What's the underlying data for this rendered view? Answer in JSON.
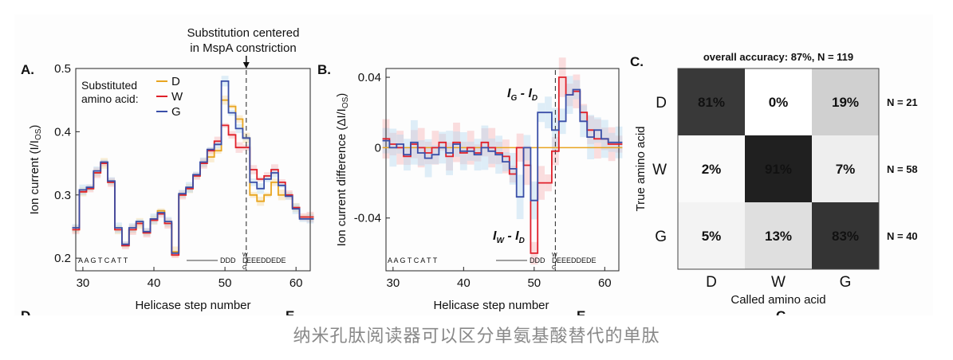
{
  "caption": "纳米孔肽阅读器可以区分单氨基酸替代的单肽",
  "annotation": {
    "line1": "Substitution centered",
    "line2": "in MspA constriction"
  },
  "colors": {
    "D": "#e8a520",
    "W": "#e0202a",
    "G": "#3a4fa8",
    "D_band": "#f6d9a0",
    "W_band": "#f7b6b8",
    "G_band": "#b9d9f0"
  },
  "panel_a": {
    "letter": "A.",
    "ylabel": "Ion current (I/I",
    "ylabel_sub": "OS",
    "ylabel_end": ")",
    "xlabel": "Helicase step number",
    "legend_title1": "Substituted",
    "legend_title2": "amino acid:",
    "legend": [
      "D",
      "W",
      "G"
    ],
    "sequence_left": "A A G T C A T T",
    "sequence_right_pre": "DDD",
    "sequence_right_post": "EEEDDEDE",
    "sub_W": "W",
    "sub_D": "D",
    "sub_G": "G"
  },
  "panel_b": {
    "letter": "B.",
    "ylabel": "Ion current difference (ΔI/I",
    "ylabel_sub": "OS",
    "ylabel_end": ")",
    "xlabel": "Helicase step number",
    "label_g": "I",
    "label_g_sub1": "G",
    "label_g_mid": " - I",
    "label_g_sub2": "D",
    "label_w": "I",
    "label_w_sub1": "W",
    "label_w_mid": " - I",
    "label_w_sub2": "D",
    "sequence_left": "A A G T C A T T",
    "sequence_right_pre": "DDD",
    "sequence_right_post": "EEEDDEDE",
    "sub_W": "W",
    "sub_D": "D",
    "sub_G": "G"
  },
  "panel_c": {
    "letter": "C.",
    "title": "overall accuracy: 87%, N = 119",
    "ylabel": "True amino acid",
    "xlabel": "Called amino acid"
  },
  "cut_letters": {
    "d": "D",
    "e": "E",
    "e2": "E",
    "c": "C"
  },
  "chart_data": [
    {
      "type": "line",
      "title": "",
      "xlabel": "Helicase step number",
      "ylabel": "Ion current (I/IOS)",
      "xlim": [
        29,
        62
      ],
      "ylim": [
        0.18,
        0.5
      ],
      "xticks": [
        30,
        40,
        50,
        60
      ],
      "yticks": [
        0.2,
        0.3,
        0.4,
        0.5
      ],
      "x": [
        29,
        30,
        31,
        32,
        33,
        34,
        35,
        36,
        37,
        38,
        39,
        40,
        41,
        42,
        43,
        44,
        45,
        46,
        47,
        48,
        49,
        50,
        51,
        52,
        53,
        54,
        55,
        56,
        57,
        58,
        59,
        60,
        61,
        62
      ],
      "series": [
        {
          "name": "D",
          "values": [
            0.245,
            0.305,
            0.31,
            0.335,
            0.35,
            0.32,
            0.245,
            0.22,
            0.245,
            0.255,
            0.24,
            0.26,
            0.275,
            0.255,
            0.21,
            0.3,
            0.31,
            0.33,
            0.35,
            0.36,
            0.37,
            0.45,
            0.44,
            0.42,
            0.39,
            0.3,
            0.29,
            0.3,
            0.32,
            0.3,
            0.3,
            0.28,
            0.265,
            0.265
          ]
        },
        {
          "name": "W",
          "values": [
            0.245,
            0.305,
            0.31,
            0.335,
            0.35,
            0.32,
            0.245,
            0.22,
            0.245,
            0.255,
            0.24,
            0.26,
            0.27,
            0.255,
            0.205,
            0.3,
            0.31,
            0.33,
            0.35,
            0.37,
            0.385,
            0.41,
            0.395,
            0.375,
            0.375,
            0.34,
            0.325,
            0.33,
            0.34,
            0.32,
            0.3,
            0.28,
            0.265,
            0.265
          ]
        },
        {
          "name": "G",
          "values": [
            0.248,
            0.308,
            0.312,
            0.338,
            0.352,
            0.322,
            0.248,
            0.222,
            0.248,
            0.258,
            0.242,
            0.262,
            0.272,
            0.258,
            0.208,
            0.302,
            0.312,
            0.332,
            0.352,
            0.372,
            0.38,
            0.48,
            0.43,
            0.405,
            0.39,
            0.32,
            0.31,
            0.325,
            0.335,
            0.315,
            0.298,
            0.278,
            0.262,
            0.262
          ]
        }
      ],
      "marker_x": 53
    },
    {
      "type": "line",
      "title": "",
      "xlabel": "Helicase step number",
      "ylabel": "Ion current difference (ΔI/IOS)",
      "xlim": [
        29,
        62
      ],
      "ylim": [
        -0.07,
        0.045
      ],
      "xticks": [
        30,
        40,
        50,
        60
      ],
      "yticks": [
        -0.04,
        0,
        0.04
      ],
      "x": [
        29,
        30,
        31,
        32,
        33,
        34,
        35,
        36,
        37,
        38,
        39,
        40,
        41,
        42,
        43,
        44,
        45,
        46,
        47,
        48,
        49,
        50,
        51,
        52,
        53,
        54,
        55,
        56,
        57,
        58,
        59,
        60,
        61,
        62
      ],
      "series": [
        {
          "name": "D",
          "values": [
            0,
            0,
            0,
            0,
            0,
            0,
            0,
            0,
            0,
            0,
            0,
            0,
            0,
            0,
            0,
            0,
            0,
            0,
            0,
            0,
            0,
            0,
            0,
            0,
            0,
            0,
            0,
            0,
            0,
            0,
            0,
            0,
            0,
            0
          ]
        },
        {
          "name": "IW - ID",
          "values": [
            0.005,
            0.002,
            0.0,
            -0.005,
            0.002,
            0.0,
            -0.003,
            0.0,
            0.003,
            -0.005,
            0.003,
            -0.003,
            0.0,
            -0.003,
            0.003,
            0.0,
            -0.003,
            -0.005,
            -0.015,
            0.0,
            -0.01,
            -0.06,
            -0.02,
            -0.02,
            -0.002,
            0.04,
            0.03,
            0.032,
            0.02,
            0.01,
            0.005,
            0.005,
            0.002,
            0.002
          ]
        },
        {
          "name": "IG - ID",
          "values": [
            0.004,
            0.0,
            0.002,
            -0.004,
            0.003,
            -0.003,
            -0.006,
            -0.004,
            0.0,
            -0.003,
            0.002,
            -0.002,
            -0.002,
            -0.004,
            0.0,
            -0.002,
            -0.004,
            -0.008,
            -0.012,
            -0.028,
            0.0,
            -0.03,
            0.02,
            0.02,
            0.01,
            0.015,
            0.03,
            0.033,
            0.015,
            0.006,
            0.01,
            0.005,
            0.003,
            0.003
          ]
        }
      ],
      "marker_x": 53
    },
    {
      "type": "heatmap",
      "title": "overall accuracy: 87%, N = 119",
      "xlabel": "Called amino acid",
      "ylabel": "True amino acid",
      "x_categories": [
        "D",
        "W",
        "G"
      ],
      "y_categories": [
        "D",
        "W",
        "G"
      ],
      "values": [
        [
          81,
          0,
          19
        ],
        [
          2,
          91,
          7
        ],
        [
          5,
          13,
          83
        ]
      ],
      "row_counts": [
        "N = 21",
        "N = 58",
        "N = 40"
      ]
    }
  ]
}
